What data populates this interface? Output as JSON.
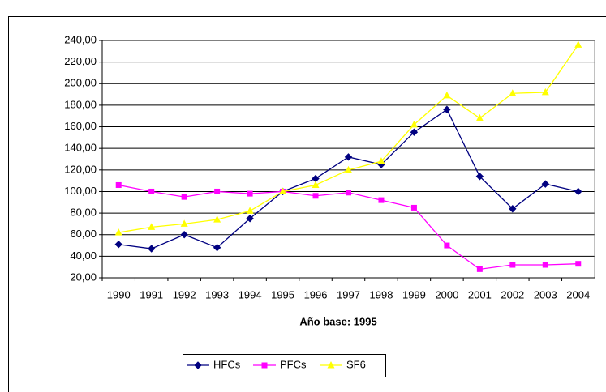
{
  "chart_data": {
    "type": "line",
    "x_label": "Año base: 1995",
    "categories": [
      "1990",
      "1991",
      "1992",
      "1993",
      "1994",
      "1995",
      "1996",
      "1997",
      "1998",
      "1999",
      "2000",
      "2001",
      "2002",
      "2003",
      "2004"
    ],
    "series": [
      {
        "name": "HFCs",
        "color": "#000080",
        "marker": "diamond",
        "values": [
          51,
          47,
          60,
          48,
          75,
          100,
          112,
          132,
          125,
          155,
          176,
          114,
          84,
          107,
          100
        ]
      },
      {
        "name": "PFCs",
        "color": "#ff00ff",
        "marker": "square",
        "values": [
          106,
          100,
          95,
          100,
          98,
          100,
          96,
          99,
          92,
          85,
          50,
          28,
          32,
          32,
          33
        ]
      },
      {
        "name": "SF6",
        "color": "#ffff00",
        "marker": "triangle",
        "values": [
          62,
          67,
          70,
          74,
          82,
          100,
          106,
          120,
          128,
          162,
          189,
          168,
          191,
          192,
          236
        ]
      }
    ],
    "ylim": [
      20,
      240
    ],
    "yticks": [
      {
        "value": 20,
        "label": "20,00"
      },
      {
        "value": 40,
        "label": "40,00"
      },
      {
        "value": 60,
        "label": "60,00"
      },
      {
        "value": 80,
        "label": "80,00"
      },
      {
        "value": 100,
        "label": "100,00"
      },
      {
        "value": 120,
        "label": "120,00"
      },
      {
        "value": 140,
        "label": "140,00"
      },
      {
        "value": 160,
        "label": "160,00"
      },
      {
        "value": 180,
        "label": "180,00"
      },
      {
        "value": 200,
        "label": "200,00"
      },
      {
        "value": 220,
        "label": "220,00"
      },
      {
        "value": 240,
        "label": "240,00"
      }
    ],
    "grid": true,
    "legend": "bottom"
  }
}
